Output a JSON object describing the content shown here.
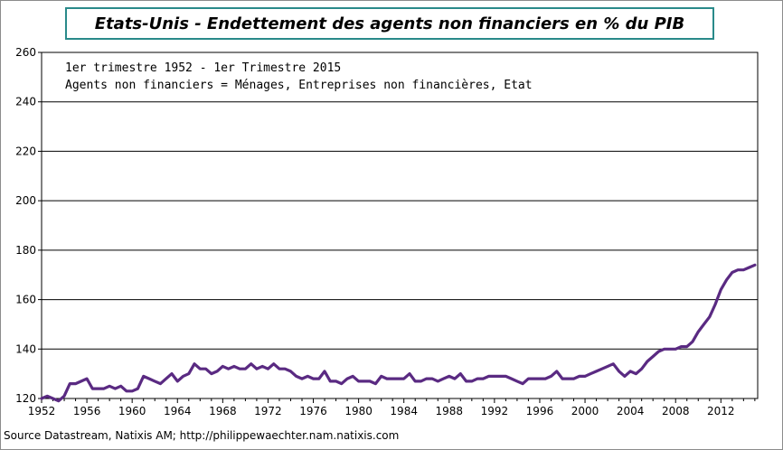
{
  "colors": {
    "line": "#5a2a82",
    "title_border": "#2a8a8a",
    "grid": "#000000"
  },
  "chart_data": {
    "type": "line",
    "title": "Etats-Unis - Endettement des agents non financiers en % du PIB",
    "annotations": [
      "1er trimestre 1952 - 1er Trimestre 2015",
      "Agents non financiers = Ménages, Entreprises non financières, Etat"
    ],
    "xlabel": "",
    "ylabel": "",
    "xlim": [
      1952.0,
      2015.25
    ],
    "ylim": [
      120,
      260
    ],
    "y_ticks": [
      120,
      140,
      160,
      180,
      200,
      220,
      240,
      260
    ],
    "x_ticks": [
      1952,
      1956,
      1960,
      1964,
      1968,
      1972,
      1976,
      1980,
      1984,
      1988,
      1992,
      1996,
      2000,
      2004,
      2008,
      2012
    ],
    "grid": "horizontal",
    "series": [
      {
        "name": "Endettement des agents non financiers (% du PIB)",
        "points": [
          [
            1952.0,
            120
          ],
          [
            1952.5,
            121
          ],
          [
            1953.0,
            120
          ],
          [
            1953.5,
            119
          ],
          [
            1954.0,
            121
          ],
          [
            1954.5,
            126
          ],
          [
            1955.0,
            126
          ],
          [
            1955.5,
            127
          ],
          [
            1956.0,
            128
          ],
          [
            1956.5,
            124
          ],
          [
            1957.0,
            124
          ],
          [
            1957.5,
            124
          ],
          [
            1958.0,
            125
          ],
          [
            1958.5,
            124
          ],
          [
            1959.0,
            125
          ],
          [
            1959.5,
            123
          ],
          [
            1960.0,
            123
          ],
          [
            1960.5,
            124
          ],
          [
            1961.0,
            129
          ],
          [
            1961.5,
            128
          ],
          [
            1962.0,
            127
          ],
          [
            1962.5,
            126
          ],
          [
            1963.0,
            128
          ],
          [
            1963.5,
            130
          ],
          [
            1964.0,
            127
          ],
          [
            1964.5,
            129
          ],
          [
            1965.0,
            130
          ],
          [
            1965.5,
            134
          ],
          [
            1966.0,
            132
          ],
          [
            1966.5,
            132
          ],
          [
            1967.0,
            130
          ],
          [
            1967.5,
            131
          ],
          [
            1968.0,
            133
          ],
          [
            1968.5,
            132
          ],
          [
            1969.0,
            133
          ],
          [
            1969.5,
            132
          ],
          [
            1970.0,
            132
          ],
          [
            1970.5,
            134
          ],
          [
            1971.0,
            132
          ],
          [
            1971.5,
            133
          ],
          [
            1972.0,
            132
          ],
          [
            1972.5,
            134
          ],
          [
            1973.0,
            132
          ],
          [
            1973.5,
            132
          ],
          [
            1974.0,
            131
          ],
          [
            1974.5,
            129
          ],
          [
            1975.0,
            128
          ],
          [
            1975.5,
            129
          ],
          [
            1976.0,
            128
          ],
          [
            1976.5,
            128
          ],
          [
            1977.0,
            131
          ],
          [
            1977.5,
            127
          ],
          [
            1978.0,
            127
          ],
          [
            1978.5,
            126
          ],
          [
            1979.0,
            128
          ],
          [
            1979.5,
            129
          ],
          [
            1980.0,
            127
          ],
          [
            1980.5,
            127
          ],
          [
            1981.0,
            127
          ],
          [
            1981.5,
            126
          ],
          [
            1982.0,
            129
          ],
          [
            1982.5,
            128
          ],
          [
            1983.0,
            128
          ],
          [
            1983.5,
            128
          ],
          [
            1984.0,
            128
          ],
          [
            1984.5,
            130
          ],
          [
            1985.0,
            127
          ],
          [
            1985.5,
            127
          ],
          [
            1986.0,
            128
          ],
          [
            1986.5,
            128
          ],
          [
            1987.0,
            127
          ],
          [
            1987.5,
            128
          ],
          [
            1988.0,
            129
          ],
          [
            1988.5,
            128
          ],
          [
            1989.0,
            130
          ],
          [
            1989.5,
            127
          ],
          [
            1990.0,
            127
          ],
          [
            1990.5,
            128
          ],
          [
            1991.0,
            128
          ],
          [
            1991.5,
            129
          ],
          [
            1992.0,
            129
          ],
          [
            1992.5,
            129
          ],
          [
            1993.0,
            129
          ],
          [
            1993.5,
            128
          ],
          [
            1994.0,
            127
          ],
          [
            1994.5,
            126
          ],
          [
            1995.0,
            128
          ],
          [
            1995.5,
            128
          ],
          [
            1996.0,
            128
          ],
          [
            1996.5,
            128
          ],
          [
            1997.0,
            129
          ],
          [
            1997.5,
            131
          ],
          [
            1998.0,
            128
          ],
          [
            1998.5,
            128
          ],
          [
            1999.0,
            128
          ],
          [
            1999.5,
            129
          ],
          [
            2000.0,
            129
          ],
          [
            2000.5,
            130
          ],
          [
            2001.0,
            131
          ],
          [
            2001.5,
            132
          ],
          [
            2002.0,
            133
          ],
          [
            2002.5,
            134
          ],
          [
            2003.0,
            131
          ],
          [
            2003.5,
            129
          ],
          [
            2004.0,
            131
          ],
          [
            2004.5,
            130
          ],
          [
            2005.0,
            132
          ],
          [
            2005.5,
            135
          ],
          [
            2006.0,
            137
          ],
          [
            2006.5,
            139
          ],
          [
            2007.0,
            140
          ],
          [
            2007.5,
            140
          ],
          [
            2008.0,
            140
          ],
          [
            2008.5,
            141
          ],
          [
            2009.0,
            141
          ],
          [
            2009.5,
            143
          ],
          [
            2010.0,
            147
          ],
          [
            2010.5,
            150
          ],
          [
            2011.0,
            153
          ],
          [
            2011.5,
            158
          ],
          [
            2012.0,
            164
          ],
          [
            2012.5,
            168
          ],
          [
            2013.0,
            171
          ],
          [
            2013.5,
            172
          ],
          [
            2014.0,
            172
          ],
          [
            2014.5,
            173
          ],
          [
            2015.0,
            174
          ]
        ]
      }
    ]
  },
  "source_text": "Source Datastream, Natixis AM; http://philippewaechter.nam.natixis.com"
}
